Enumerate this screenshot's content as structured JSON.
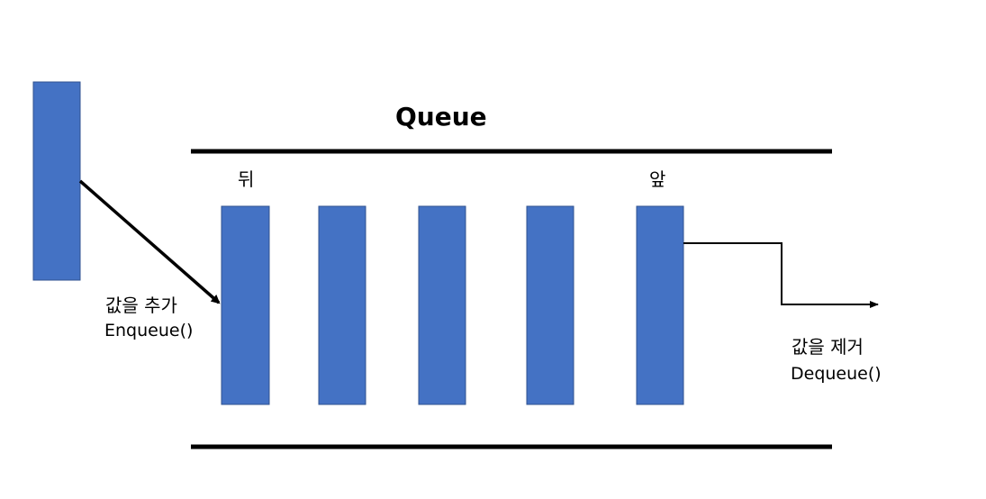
{
  "title": "Queue",
  "rear_label": "뒤",
  "front_label": "앞",
  "enqueue": {
    "korean": "값을 추가",
    "function": "Enqueue()"
  },
  "dequeue": {
    "korean": "값을 제거",
    "function": "Dequeue()"
  },
  "colors": {
    "block_fill": "#4472C4",
    "block_stroke": "#2F528F",
    "line": "#000000",
    "background": "#FFFFFF"
  }
}
